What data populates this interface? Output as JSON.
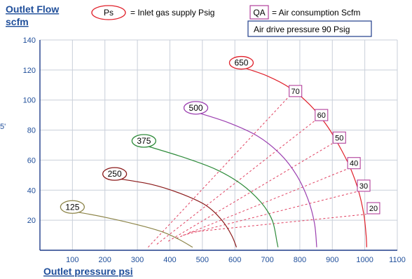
{
  "chart_data": {
    "type": "line",
    "title": "",
    "ylabel_line1": "Outlet Flow",
    "ylabel_line2": "scfm",
    "xlabel": "Outlet pressure   psi",
    "xlim": [
      0,
      1100
    ],
    "ylim": [
      0,
      140
    ],
    "xticks": [
      100,
      200,
      300,
      400,
      500,
      600,
      700,
      800,
      900,
      1000,
      1100
    ],
    "yticks": [
      20,
      40,
      60,
      80,
      100,
      120,
      140
    ],
    "grid": true,
    "stray_label": "5'",
    "legend": {
      "ps_symbol": "Ps",
      "ps_text": "= Inlet gas supply  Psig",
      "qa_symbol": "QA",
      "qa_text": "= Air consumption  Scfm",
      "air_drive_text": "Air drive pressure  90 Psig"
    },
    "series": [
      {
        "name": "125",
        "color": "#8c8448",
        "points": [
          [
            100,
            26
          ],
          [
            200,
            22
          ],
          [
            300,
            17
          ],
          [
            380,
            12
          ],
          [
            430,
            7
          ],
          [
            470,
            2
          ]
        ]
      },
      {
        "name": "250",
        "color": "#8b1a1a",
        "points": [
          [
            230,
            48
          ],
          [
            340,
            44
          ],
          [
            430,
            38
          ],
          [
            510,
            30
          ],
          [
            560,
            20
          ],
          [
            590,
            10
          ],
          [
            605,
            2
          ]
        ]
      },
      {
        "name": "375",
        "color": "#2e8b3a",
        "points": [
          [
            320,
            70
          ],
          [
            440,
            62
          ],
          [
            540,
            54
          ],
          [
            620,
            44
          ],
          [
            680,
            32
          ],
          [
            715,
            20
          ],
          [
            730,
            5
          ],
          [
            733,
            2
          ]
        ]
      },
      {
        "name": "500",
        "color": "#9b3fb0",
        "points": [
          [
            480,
            92
          ],
          [
            580,
            85
          ],
          [
            670,
            76
          ],
          [
            740,
            64
          ],
          [
            790,
            50
          ],
          [
            825,
            34
          ],
          [
            845,
            18
          ],
          [
            852,
            2
          ]
        ]
      },
      {
        "name": "650",
        "color": "#e0202a",
        "points": [
          [
            620,
            122
          ],
          [
            700,
            116
          ],
          [
            770,
            108
          ],
          [
            830,
            97
          ],
          [
            880,
            84
          ],
          [
            920,
            70
          ],
          [
            955,
            55
          ],
          [
            980,
            40
          ],
          [
            997,
            24
          ],
          [
            1004,
            10
          ],
          [
            1006,
            2
          ]
        ]
      }
    ],
    "air_consumption_labels": [
      {
        "label": "70",
        "x": 765,
        "y": 106
      },
      {
        "label": "60",
        "x": 845,
        "y": 90
      },
      {
        "label": "50",
        "x": 900,
        "y": 75
      },
      {
        "label": "40",
        "x": 945,
        "y": 58
      },
      {
        "label": "30",
        "x": 975,
        "y": 43
      },
      {
        "label": "20",
        "x": 1005,
        "y": 28
      }
    ],
    "air_consumption_lines": [
      {
        "label": "70",
        "from": [
          333,
          2
        ],
        "to": [
          765,
          102
        ]
      },
      {
        "label": "60",
        "from": [
          360,
          4
        ],
        "to": [
          845,
          86
        ]
      },
      {
        "label": "50",
        "from": [
          395,
          6
        ],
        "to": [
          900,
          71
        ]
      },
      {
        "label": "40",
        "from": [
          420,
          8
        ],
        "to": [
          945,
          54
        ]
      },
      {
        "label": "30",
        "from": [
          440,
          10
        ],
        "to": [
          975,
          39
        ]
      },
      {
        "label": "20",
        "from": [
          460,
          12
        ],
        "to": [
          1005,
          24
        ]
      }
    ]
  }
}
